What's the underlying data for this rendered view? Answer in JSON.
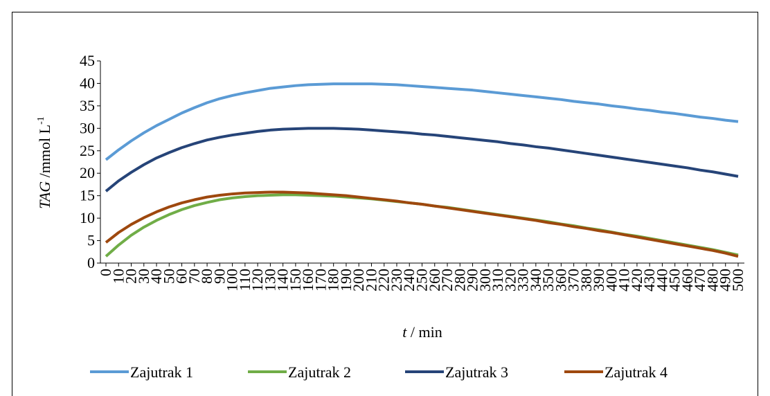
{
  "chart_data": {
    "type": "line",
    "ylabel": [
      "TAG",
      " /mmol L",
      "-1"
    ],
    "xlabel": [
      "t",
      " / min"
    ],
    "x": [
      0,
      10,
      20,
      30,
      40,
      50,
      60,
      70,
      80,
      90,
      100,
      110,
      120,
      130,
      140,
      150,
      160,
      170,
      180,
      190,
      200,
      210,
      220,
      230,
      240,
      250,
      260,
      270,
      280,
      290,
      300,
      310,
      320,
      330,
      340,
      350,
      360,
      370,
      380,
      390,
      400,
      410,
      420,
      430,
      440,
      450,
      460,
      470,
      480,
      490,
      500
    ],
    "xlim": [
      0,
      500
    ],
    "xticks": [
      0,
      10,
      20,
      30,
      40,
      50,
      60,
      70,
      80,
      90,
      100,
      110,
      120,
      130,
      140,
      150,
      160,
      170,
      180,
      190,
      200,
      210,
      220,
      230,
      240,
      250,
      260,
      270,
      280,
      290,
      300,
      310,
      320,
      330,
      340,
      350,
      360,
      370,
      380,
      390,
      400,
      410,
      420,
      430,
      440,
      450,
      460,
      470,
      480,
      490,
      500
    ],
    "ylim": [
      0,
      45
    ],
    "yticks": [
      0,
      5,
      10,
      15,
      20,
      25,
      30,
      35,
      40,
      45
    ],
    "grid": false,
    "legend": "bottom",
    "series": [
      {
        "name": "Zajutrak 1",
        "color": "#5b9bd5",
        "values": [
          23,
          25.2,
          27.2,
          29,
          30.6,
          32,
          33.4,
          34.6,
          35.7,
          36.6,
          37.3,
          37.9,
          38.4,
          38.9,
          39.2,
          39.5,
          39.7,
          39.8,
          39.9,
          39.9,
          39.9,
          39.9,
          39.8,
          39.7,
          39.5,
          39.3,
          39.1,
          38.9,
          38.7,
          38.5,
          38.2,
          37.9,
          37.6,
          37.3,
          37,
          36.7,
          36.4,
          36,
          35.7,
          35.4,
          35,
          34.7,
          34.3,
          34,
          33.6,
          33.3,
          32.9,
          32.5,
          32.2,
          31.8,
          31.5
        ]
      },
      {
        "name": "Zajutrak 2",
        "color": "#70ad47",
        "values": [
          1.5,
          4,
          6.2,
          8,
          9.5,
          10.8,
          11.9,
          12.8,
          13.5,
          14.1,
          14.5,
          14.8,
          15,
          15.1,
          15.2,
          15.2,
          15.1,
          15,
          14.9,
          14.7,
          14.5,
          14.3,
          14,
          13.7,
          13.4,
          13.1,
          12.7,
          12.4,
          12,
          11.6,
          11.2,
          10.8,
          10.4,
          10,
          9.6,
          9.2,
          8.7,
          8.3,
          7.8,
          7.4,
          6.9,
          6.4,
          6,
          5.5,
          5,
          4.5,
          4,
          3.5,
          3,
          2.4,
          1.8
        ]
      },
      {
        "name": "Zajutrak 3",
        "color": "#264478",
        "values": [
          16,
          18.3,
          20.2,
          21.9,
          23.4,
          24.6,
          25.7,
          26.6,
          27.4,
          28,
          28.5,
          28.9,
          29.3,
          29.6,
          29.8,
          29.9,
          30,
          30,
          30,
          29.9,
          29.8,
          29.6,
          29.4,
          29.2,
          29,
          28.7,
          28.5,
          28.2,
          27.9,
          27.6,
          27.3,
          27,
          26.6,
          26.3,
          25.9,
          25.6,
          25.2,
          24.8,
          24.4,
          24,
          23.6,
          23.2,
          22.8,
          22.4,
          22,
          21.6,
          21.2,
          20.7,
          20.3,
          19.8,
          19.3
        ]
      },
      {
        "name": "Zajutrak 4",
        "color": "#9e480e",
        "values": [
          4.6,
          6.8,
          8.6,
          10.1,
          11.4,
          12.5,
          13.4,
          14.1,
          14.7,
          15.1,
          15.4,
          15.6,
          15.7,
          15.8,
          15.8,
          15.7,
          15.6,
          15.4,
          15.2,
          15,
          14.7,
          14.4,
          14.1,
          13.8,
          13.4,
          13.1,
          12.7,
          12.3,
          11.9,
          11.5,
          11.1,
          10.7,
          10.3,
          9.9,
          9.5,
          9,
          8.6,
          8.1,
          7.7,
          7.2,
          6.8,
          6.3,
          5.8,
          5.3,
          4.8,
          4.3,
          3.8,
          3.3,
          2.8,
          2.2,
          1.5
        ]
      }
    ]
  }
}
